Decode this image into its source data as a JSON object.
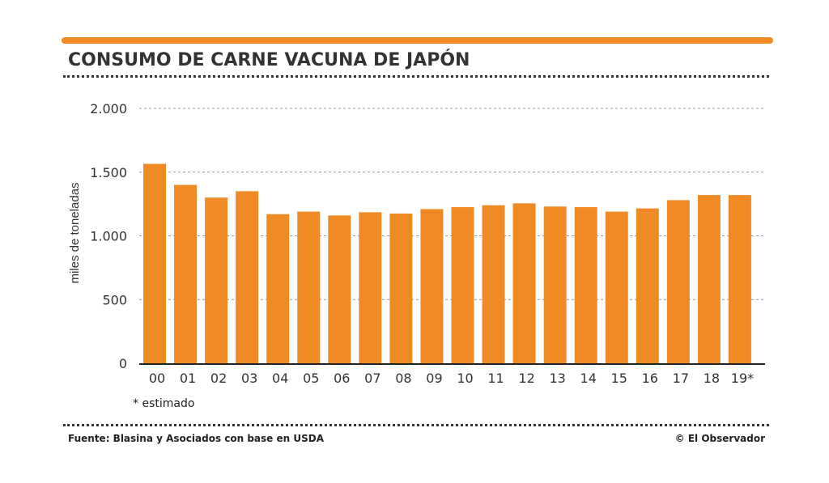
{
  "title": "CONSUMO DE CARNE VACUNA DE JAPÓN",
  "footnote": "* estimado",
  "source": "Fuente: Blasina y Asociados con base en USDA",
  "credit": "© El Observador",
  "colors": {
    "bar": "#f08a24",
    "accent": "#f08a24",
    "text": "#333333",
    "grid": "#9a9a9a"
  },
  "chart_data": {
    "type": "bar",
    "title": "CONSUMO DE CARNE VACUNA DE JAPÓN",
    "xlabel": "",
    "ylabel": "miles de toneladas",
    "ylim": [
      0,
      2000
    ],
    "yticks": [
      0,
      500,
      1000,
      1500,
      2000
    ],
    "ytick_labels": [
      "0",
      "500",
      "1.000",
      "1.500",
      "2.000"
    ],
    "grid": true,
    "categories": [
      "00",
      "01",
      "02",
      "03",
      "04",
      "05",
      "06",
      "07",
      "08",
      "09",
      "10",
      "11",
      "12",
      "13",
      "14",
      "15",
      "16",
      "17",
      "18",
      "19*"
    ],
    "values": [
      1565,
      1400,
      1300,
      1350,
      1170,
      1190,
      1160,
      1185,
      1175,
      1210,
      1225,
      1240,
      1255,
      1230,
      1225,
      1190,
      1215,
      1280,
      1320,
      1320
    ]
  }
}
